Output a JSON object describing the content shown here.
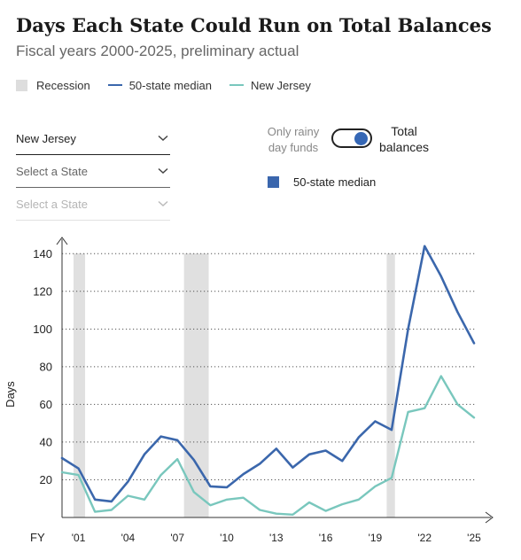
{
  "header": {
    "title": "Days Each State Could Run on Total Balances",
    "subtitle": "Fiscal years 2000-2025, preliminary actual"
  },
  "legend": {
    "recession": "Recession",
    "median": "50-state median",
    "state": "New Jersey"
  },
  "colors": {
    "median": "#3b67ac",
    "state": "#79c7bd",
    "recession": "#e0e0e0"
  },
  "selects": [
    {
      "value": "New Jersey",
      "state": "selected"
    },
    {
      "value": "Select a State",
      "state": "empty"
    },
    {
      "value": "Select a State",
      "state": "disabled"
    }
  ],
  "toggle": {
    "left_line1": "Only rainy",
    "left_line2": "day funds",
    "right_line1": "Total",
    "right_line2": "balances",
    "selected": "Total balances"
  },
  "key_label": "50-state median",
  "chart_data": {
    "type": "line",
    "title": "Days Each State Could Run on Total Balances",
    "subtitle": "Fiscal years 2000-2025, preliminary actual",
    "ylabel": "Days",
    "xlabel": "FY",
    "ylim": [
      0,
      150
    ],
    "y_ticks": [
      20,
      40,
      60,
      80,
      100,
      120,
      140
    ],
    "grid": "horizontal dotted",
    "x": [
      2000,
      2001,
      2002,
      2003,
      2004,
      2005,
      2006,
      2007,
      2008,
      2009,
      2010,
      2011,
      2012,
      2013,
      2014,
      2015,
      2016,
      2017,
      2018,
      2019,
      2020,
      2021,
      2022,
      2023,
      2024,
      2025
    ],
    "x_tick_labels": [
      {
        "year": 2001,
        "label": "'01"
      },
      {
        "year": 2004,
        "label": "'04"
      },
      {
        "year": 2007,
        "label": "'07"
      },
      {
        "year": 2010,
        "label": "'10"
      },
      {
        "year": 2013,
        "label": "'13"
      },
      {
        "year": 2016,
        "label": "'16"
      },
      {
        "year": 2019,
        "label": "'19"
      },
      {
        "year": 2022,
        "label": "'22"
      },
      {
        "year": 2025,
        "label": "'25"
      }
    ],
    "recessions": [
      {
        "start": 2000.7,
        "end": 2001.4
      },
      {
        "start": 2007.4,
        "end": 2008.9
      },
      {
        "start": 2019.7,
        "end": 2020.2
      }
    ],
    "series": [
      {
        "name": "50-state median",
        "values": [
          31.5,
          26,
          9.5,
          8.5,
          19,
          33.5,
          43,
          41,
          30.5,
          16.5,
          16,
          23,
          28.5,
          36.5,
          26.5,
          33.5,
          35.5,
          30,
          42.5,
          51,
          46.5,
          100,
          144,
          128,
          109,
          92.5
        ]
      },
      {
        "name": "New Jersey",
        "values": [
          24,
          22.5,
          3,
          4,
          11.5,
          9.5,
          22.5,
          31,
          13.5,
          6.5,
          9.5,
          10.5,
          4,
          2,
          1.5,
          8,
          3.5,
          7,
          9.5,
          16.5,
          21,
          56,
          58,
          75,
          60,
          53
        ]
      }
    ]
  }
}
